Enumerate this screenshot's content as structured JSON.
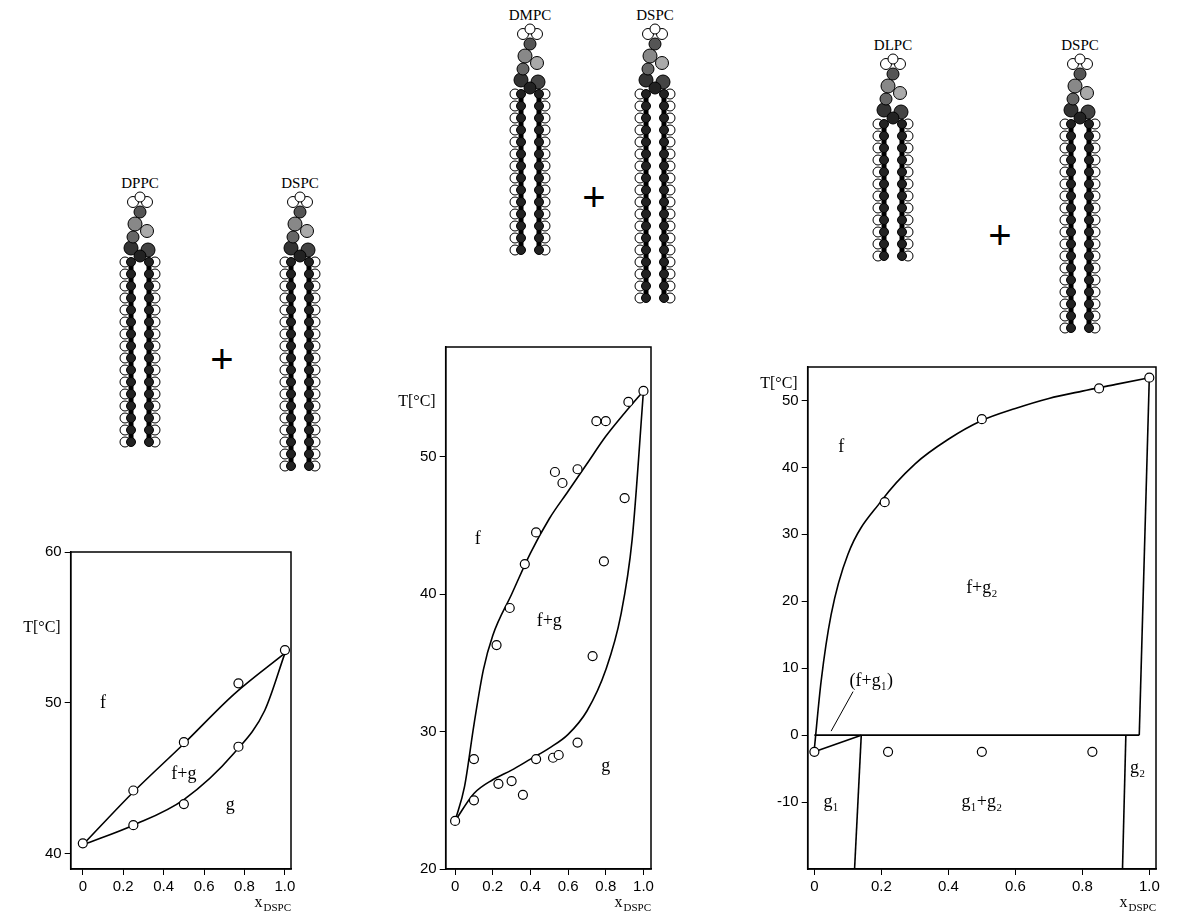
{
  "chart_data": [
    {
      "type": "line",
      "components": [
        "DPPC",
        "DSPC"
      ],
      "join": "+",
      "x_label": {
        "text": "x",
        "subscript": "DSPC"
      },
      "y_label": "T[°C]",
      "xlim": [
        -0.06,
        1.03
      ],
      "xticks": [
        0,
        0.2,
        0.4,
        0.6,
        0.8,
        {
          "value": 1,
          "label": "1.0"
        }
      ],
      "ylim": [
        39,
        60
      ],
      "yticks": [
        40,
        50,
        60
      ],
      "grid": false,
      "series": [
        {
          "type": "line",
          "marker": "none",
          "line_style": "solid",
          "color": "#000000",
          "x": [
            0,
            0.25,
            0.5,
            0.75,
            1
          ],
          "values": [
            40.6,
            44.1,
            47.3,
            50.6,
            53.3
          ]
        },
        {
          "type": "line",
          "marker": "none",
          "line_style": "solid",
          "color": "#000000",
          "x": [
            0,
            0.25,
            0.5,
            0.75,
            0.9,
            1
          ],
          "values": [
            40.6,
            41.9,
            43.6,
            46.7,
            49.5,
            53.3
          ]
        },
        {
          "type": "scatter",
          "marker": "open_circle",
          "color": "#000000",
          "x": [
            0,
            0.25,
            0.25,
            0.5,
            0.5,
            0.77,
            0.77,
            1
          ],
          "values": [
            40.7,
            44.2,
            41.9,
            47.4,
            43.3,
            51.3,
            47.1,
            53.5
          ]
        }
      ],
      "annotations": [
        {
          "text": "f",
          "x": 0.1,
          "y": 50
        },
        {
          "text": "f+g",
          "x": 0.5,
          "y": 45.3
        },
        {
          "text": "g",
          "x": 0.73,
          "y": 43.2
        }
      ]
    },
    {
      "type": "line",
      "components": [
        "DMPC",
        "DSPC"
      ],
      "join": "+",
      "x_label": {
        "text": "x",
        "subscript": "DSPC"
      },
      "y_label": "T[°C]",
      "xlim": [
        -0.05,
        1.04
      ],
      "xticks": [
        0,
        0.2,
        0.4,
        0.6,
        0.8,
        {
          "value": 1,
          "label": "1.0"
        }
      ],
      "ylim": [
        20,
        58
      ],
      "yticks": [
        20,
        30,
        40,
        50
      ],
      "grid": false,
      "series": [
        {
          "type": "line",
          "marker": "none",
          "line_style": "solid",
          "color": "#000000",
          "x": [
            0,
            0.05,
            0.1,
            0.15,
            0.2,
            0.3,
            0.4,
            0.5,
            0.6,
            0.7,
            0.8,
            0.9,
            1
          ],
          "values": [
            23.5,
            26,
            30.5,
            34.5,
            37,
            40,
            43,
            45.5,
            47.5,
            49.5,
            51.5,
            53.2,
            54.8
          ]
        },
        {
          "type": "line",
          "marker": "none",
          "line_style": "solid",
          "color": "#000000",
          "x": [
            0,
            0.1,
            0.2,
            0.3,
            0.4,
            0.5,
            0.6,
            0.7,
            0.8,
            0.88,
            0.94,
            1
          ],
          "values": [
            23.5,
            25.5,
            26.5,
            27.2,
            28,
            28.8,
            29.8,
            31.5,
            34.5,
            38.5,
            44,
            54.8
          ]
        },
        {
          "type": "scatter",
          "marker": "open_circle",
          "color": "#000000",
          "x": [
            0,
            0.1,
            0.22,
            0.29,
            0.37,
            0.43,
            0.53,
            0.57,
            0.65,
            0.75,
            0.8,
            0.92,
            1,
            0.1,
            0.23,
            0.3,
            0.36,
            0.43,
            0.52,
            0.55,
            0.65,
            0.73,
            0.79,
            0.9
          ],
          "values": [
            23.5,
            28,
            36.3,
            39,
            42.2,
            44.5,
            48.9,
            48.1,
            49.1,
            52.6,
            52.6,
            54,
            54.8,
            25,
            26.2,
            26.4,
            25.4,
            28,
            28.1,
            28.3,
            29.2,
            35.5,
            42.4,
            47
          ]
        }
      ],
      "annotations": [
        {
          "text": "f",
          "x": 0.12,
          "y": 44
        },
        {
          "text": "f+g",
          "x": 0.5,
          "y": 38
        },
        {
          "text": "g",
          "x": 0.8,
          "y": 27.5
        }
      ]
    },
    {
      "type": "line",
      "components": [
        "DLPC",
        "DSPC"
      ],
      "join": "+",
      "x_label": {
        "text": "x",
        "subscript": "DSPC"
      },
      "y_label": "T[°C]",
      "xlim": [
        -0.02,
        1.02
      ],
      "xticks": [
        0,
        0.2,
        0.4,
        0.6,
        0.8,
        {
          "value": 1,
          "label": "1.0"
        }
      ],
      "ylim": [
        -20,
        55
      ],
      "yticks": [
        -10,
        0,
        10,
        20,
        30,
        40,
        50
      ],
      "grid": false,
      "series": [
        {
          "type": "line",
          "marker": "none",
          "line_style": "solid",
          "color": "#000000",
          "x": [
            0,
            0.02,
            0.05,
            0.1,
            0.2,
            0.3,
            0.4,
            0.5,
            0.6,
            0.7,
            0.8,
            0.9,
            1
          ],
          "values": [
            -2,
            8,
            18,
            27,
            35,
            40.5,
            44.2,
            47,
            48.8,
            50.3,
            51.4,
            52.4,
            53.4
          ]
        },
        {
          "type": "line",
          "marker": "none",
          "line_style": "solid",
          "color": "#000000",
          "x": [
            0,
            0.97
          ],
          "values": [
            0,
            0
          ]
        },
        {
          "type": "line",
          "marker": "none",
          "line_style": "solid",
          "color": "#000000",
          "x": [
            0,
            0.14
          ],
          "values": [
            -2.5,
            0
          ]
        },
        {
          "type": "line",
          "marker": "none",
          "line_style": "solid",
          "color": "#000000",
          "x": [
            0.14,
            0.12
          ],
          "values": [
            0,
            -20
          ]
        },
        {
          "type": "line",
          "marker": "none",
          "line_style": "solid",
          "color": "#000000",
          "x": [
            0.93,
            0.92
          ],
          "values": [
            0,
            -20
          ]
        },
        {
          "type": "line",
          "marker": "none",
          "line_style": "solid",
          "color": "#000000",
          "x": [
            0.97,
            1
          ],
          "values": [
            0,
            53.4
          ]
        },
        {
          "type": "scatter",
          "marker": "open_circle",
          "color": "#000000",
          "x": [
            0,
            0.21,
            0.5,
            0.85,
            1,
            0.22,
            0.5,
            0.83
          ],
          "values": [
            -2.5,
            34.8,
            47.2,
            51.8,
            53.4,
            -2.5,
            -2.5,
            -2.5
          ]
        }
      ],
      "annotations": [
        {
          "text": "f",
          "x": 0.08,
          "y": 43
        },
        {
          "text": "f+g₂",
          "x": 0.5,
          "y": 22
        },
        {
          "text": "(f+g₁)",
          "x": 0.17,
          "y": 8,
          "arrow_to": [
            0.05,
            0.6
          ]
        },
        {
          "text": "g₁",
          "x": 0.05,
          "y": -10
        },
        {
          "text": "g₁+g₂",
          "x": 0.5,
          "y": -10
        },
        {
          "text": "g₂",
          "x": 0.965,
          "y": -5
        }
      ]
    }
  ]
}
